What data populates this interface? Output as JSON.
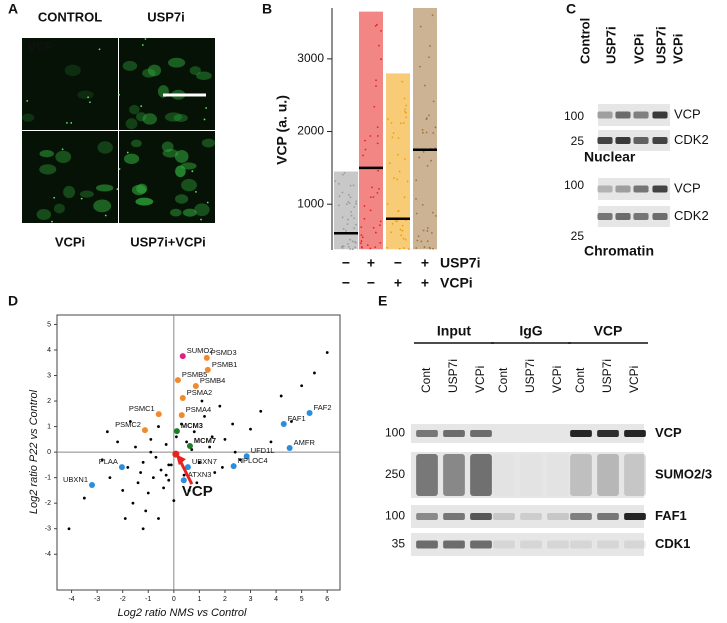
{
  "panel_labels": [
    "A",
    "B",
    "C",
    "D",
    "E"
  ],
  "panel_a": {
    "conditions": [
      "CONTROL",
      "USP7i",
      "VCPi",
      "USP7i+VCPi"
    ],
    "stain": "VCP"
  },
  "chart_data": [
    {
      "type": "strip",
      "ylabel": "VCP (a. u.)",
      "ylim": [
        370,
        3700
      ],
      "yticks": [
        1000,
        2000,
        3000
      ],
      "groups": [
        {
          "color": "#9a9a9a",
          "median": 600,
          "min": 380,
          "max": 1450
        },
        {
          "color": "#e8231f",
          "median": 1500,
          "min": 380,
          "max": 3650
        },
        {
          "color": "#f2a007",
          "median": 800,
          "min": 380,
          "max": 2800
        },
        {
          "color": "#a0743d",
          "median": 1750,
          "min": 380,
          "max": 3700
        }
      ],
      "conditions": [
        {
          "name": "USP7i",
          "signs": [
            "−",
            "+",
            "−",
            "+"
          ]
        },
        {
          "name": "VCPi",
          "signs": [
            "−",
            "−",
            "+",
            "+"
          ]
        }
      ]
    },
    {
      "type": "scatter",
      "xlabel": "Log2 ratio NMS vs Control",
      "ylabel": "Log2 ratio P22 vs Control",
      "xlim": [
        -4.57,
        6.5
      ],
      "ylim": [
        -5.4,
        5.37
      ],
      "xticks": [
        -4,
        -3,
        -2,
        -1,
        0,
        1,
        2,
        3,
        4,
        5,
        6
      ],
      "yticks": [
        -4,
        -3,
        -2,
        -1,
        0,
        1,
        2,
        3,
        4,
        5
      ],
      "background": {
        "color": "#000000",
        "x": [
          -3.5,
          -2.8,
          -2.5,
          -2.2,
          -2.0,
          -1.8,
          -1.6,
          -1.5,
          -1.4,
          -1.3,
          -1.2,
          -1.1,
          -1.0,
          -0.9,
          -0.8,
          -0.7,
          -0.6,
          -0.5,
          -0.4,
          -0.3,
          -0.2,
          -0.1,
          0.0,
          0.1,
          0.2,
          0.3,
          0.4,
          0.5,
          0.6,
          0.8,
          1.0,
          1.2,
          1.4,
          1.6,
          1.8,
          2.0,
          2.3,
          2.6,
          3.0,
          3.4,
          3.8,
          4.2,
          4.6,
          5.0,
          5.5,
          6.0,
          -1.7,
          -1.2,
          -0.6,
          -0.9,
          0.7,
          1.1,
          1.9,
          2.4,
          -2.6,
          -0.3,
          0.9,
          1.5,
          -1.9,
          -0.2,
          -4.1
        ],
        "y": [
          -1.8,
          -0.3,
          -1.0,
          0.4,
          -1.5,
          -0.6,
          -2.0,
          0.2,
          -1.2,
          -0.8,
          -0.4,
          -2.3,
          -1.6,
          0.5,
          -1.0,
          -0.2,
          -2.6,
          -0.7,
          -1.4,
          0.3,
          -1.1,
          -0.5,
          -1.9,
          0.6,
          -0.3,
          1.1,
          -0.9,
          0.4,
          -1.5,
          0.8,
          -0.4,
          1.4,
          0.2,
          -0.8,
          1.8,
          0.5,
          1.1,
          -0.3,
          0.9,
          1.6,
          0.4,
          2.2,
          1.2,
          2.6,
          3.1,
          3.9,
          1.2,
          -3.0,
          1.0,
          0.0,
          0.1,
          2.0,
          -0.6,
          0.0,
          0.8,
          -0.9,
          -1.2,
          0.6,
          -2.6,
          -0.5,
          -3.0
        ]
      },
      "labeled_points": [
        {
          "label": "SUMO2",
          "x": 0.35,
          "y": 3.76,
          "color": "#e0208a"
        },
        {
          "label": "PSMD3",
          "x": 1.29,
          "y": 3.69,
          "color": "#f08a2c"
        },
        {
          "label": "PSMB1",
          "x": 1.33,
          "y": 3.22,
          "color": "#f08a2c"
        },
        {
          "label": "PSMB5",
          "x": 0.16,
          "y": 2.82,
          "color": "#f08a2c"
        },
        {
          "label": "PSMB4",
          "x": 0.86,
          "y": 2.59,
          "color": "#f08a2c"
        },
        {
          "label": "PSMA2",
          "x": 0.35,
          "y": 2.12,
          "color": "#f08a2c"
        },
        {
          "label": "PSMA4",
          "x": 0.31,
          "y": 1.45,
          "color": "#f08a2c"
        },
        {
          "label": "PSMC1",
          "x": -0.59,
          "y": 1.49,
          "color": "#f08a2c"
        },
        {
          "label": "PSMC2",
          "x": -1.13,
          "y": 0.86,
          "color": "#f08a2c"
        },
        {
          "label": "MCM3",
          "x": 0.12,
          "y": 0.82,
          "color": "#1e7d28"
        },
        {
          "label": "MCM7",
          "x": 0.63,
          "y": 0.24,
          "color": "#1e7d28"
        },
        {
          "label": "FAF2",
          "x": 5.31,
          "y": 1.53,
          "color": "#2a8ee0"
        },
        {
          "label": "FAF1",
          "x": 4.3,
          "y": 1.1,
          "color": "#2a8ee0"
        },
        {
          "label": "AMFR",
          "x": 4.53,
          "y": 0.16,
          "color": "#2a8ee0"
        },
        {
          "label": "UFD1L",
          "x": 2.85,
          "y": -0.16,
          "color": "#2a8ee0"
        },
        {
          "label": "NPLOC4",
          "x": 2.34,
          "y": -0.55,
          "color": "#2a8ee0"
        },
        {
          "label": "UBXN7",
          "x": 0.55,
          "y": -0.59,
          "color": "#2a8ee0"
        },
        {
          "label": "ATXN3",
          "x": 0.39,
          "y": -1.1,
          "color": "#2a8ee0"
        },
        {
          "label": "PLAA",
          "x": -2.03,
          "y": -0.59,
          "color": "#2a8ee0"
        },
        {
          "label": "UBXN1",
          "x": -3.2,
          "y": -1.29,
          "color": "#2a8ee0"
        },
        {
          "label": "VCP",
          "x": 0.08,
          "y": -0.08,
          "color": "#e8231f"
        }
      ]
    }
  ],
  "panel_c": {
    "lanes": [
      [
        "Control"
      ],
      [
        "USP7i"
      ],
      [
        "VCPi"
      ],
      [
        "USP7i",
        "VCPi"
      ]
    ],
    "sections": [
      {
        "name": "Nuclear",
        "blots": [
          {
            "label": "VCP",
            "marker": 100
          },
          {
            "label": "CDK2",
            "marker": 25
          }
        ]
      },
      {
        "name": "Chromatin",
        "blots": [
          {
            "label": "VCP",
            "marker": 100
          },
          {
            "label": "CDK2",
            "marker": 25
          }
        ]
      }
    ]
  },
  "panel_e": {
    "groups": [
      {
        "name": "Input",
        "lanes": [
          "Cont",
          "USP7i",
          "VCPi"
        ]
      },
      {
        "name": "IgG",
        "lanes": [
          "Cont",
          "USP7i",
          "VCPi"
        ]
      },
      {
        "name": "VCP",
        "lanes": [
          "Cont",
          "USP7i",
          "VCPi"
        ]
      }
    ],
    "blots": [
      {
        "label": "VCP",
        "marker": 100
      },
      {
        "label": "SUMO2/3",
        "marker": 250
      },
      {
        "label": "FAF1",
        "marker": 100
      },
      {
        "label": "CDK1",
        "marker": 35
      }
    ]
  }
}
